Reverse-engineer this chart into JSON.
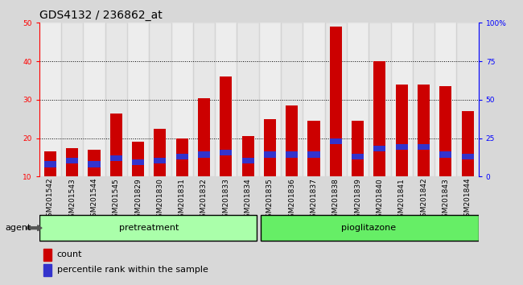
{
  "title": "GDS4132 / 236862_at",
  "samples": [
    "GSM201542",
    "GSM201543",
    "GSM201544",
    "GSM201545",
    "GSM201829",
    "GSM201830",
    "GSM201831",
    "GSM201832",
    "GSM201833",
    "GSM201834",
    "GSM201835",
    "GSM201836",
    "GSM201837",
    "GSM201838",
    "GSM201839",
    "GSM201840",
    "GSM201841",
    "GSM201842",
    "GSM201843",
    "GSM201844"
  ],
  "counts": [
    16.5,
    17.5,
    17.0,
    26.5,
    19.0,
    22.5,
    20.0,
    30.5,
    36.0,
    20.5,
    25.0,
    28.5,
    24.5,
    49.0,
    24.5,
    40.0,
    34.0,
    34.0,
    33.5,
    27.0
  ],
  "pct_bottoms": [
    12.5,
    13.5,
    12.5,
    14.0,
    13.0,
    13.5,
    14.5,
    15.0,
    15.5,
    13.5,
    15.0,
    15.0,
    15.0,
    18.5,
    14.5,
    16.5,
    17.0,
    17.0,
    15.0,
    14.5
  ],
  "pct_heights": [
    1.5,
    1.5,
    1.5,
    1.5,
    1.5,
    1.5,
    1.5,
    1.5,
    1.5,
    1.5,
    1.5,
    1.5,
    1.5,
    1.5,
    1.5,
    1.5,
    1.5,
    1.5,
    1.5,
    1.5
  ],
  "pretreatment_count": 10,
  "pioglitazone_count": 10,
  "ymin": 10,
  "ymax": 50,
  "yticks_left": [
    10,
    20,
    30,
    40,
    50
  ],
  "yticks_right": [
    0,
    25,
    50,
    75,
    100
  ],
  "ytick_labels_right": [
    "0",
    "25",
    "50",
    "75",
    "100%"
  ],
  "bar_color_count": "#cc0000",
  "bar_color_pct": "#3333cc",
  "bar_width": 0.55,
  "agent_label": "agent",
  "pretreatment_label": "pretreatment",
  "pioglitazone_label": "pioglitazone",
  "legend_count": "count",
  "legend_pct": "percentile rank within the sample",
  "background_color": "#d8d8d8",
  "plot_bg_color": "#ffffff",
  "pretreatment_bg": "#aaffaa",
  "pioglitazone_bg": "#66ee66",
  "col_bg_even": "#cccccc",
  "col_bg_odd": "#bbbbbb",
  "grid_color": "#000000",
  "title_fontsize": 10,
  "tick_fontsize": 6.5,
  "label_fontsize": 8,
  "arrow_color": "#555555"
}
